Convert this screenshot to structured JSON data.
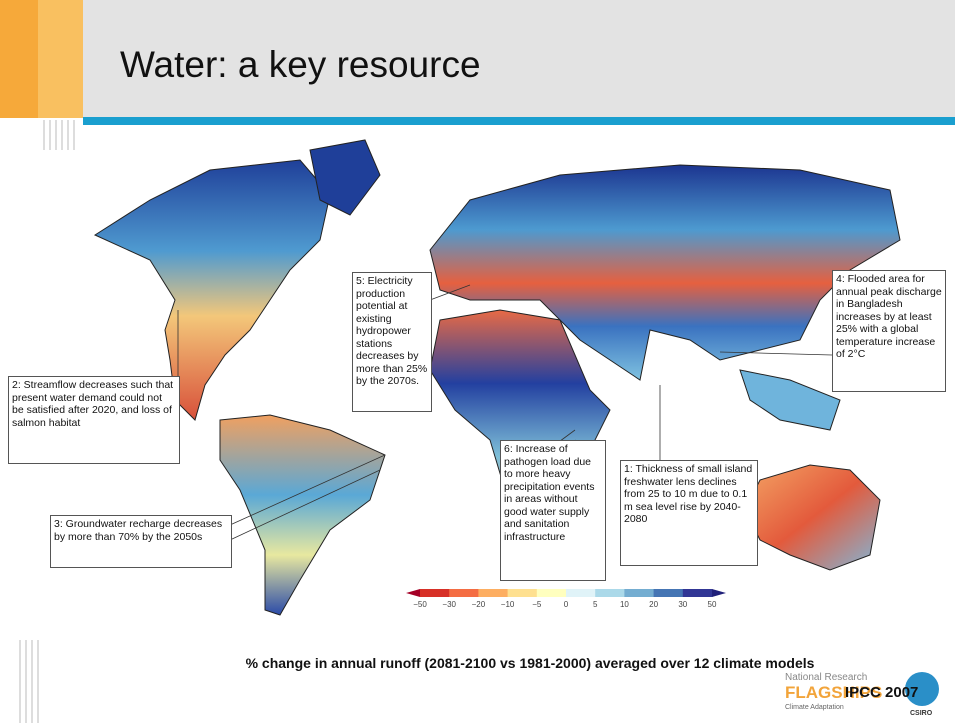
{
  "header": {
    "title": "Water: a key resource"
  },
  "annotations": [
    "1: Thickness of small island freshwater lens declines from 25 to 10 m due to 0.1 m sea level rise by 2040-2080",
    "2: Streamflow decreases such that present water demand could not be satisfied after 2020, and loss of salmon habitat",
    "3: Groundwater recharge decreases by more than 70% by the 2050s",
    "4: Flooded area for annual peak discharge in Bangladesh increases by at least 25% with a global temperature increase of 2°C",
    "5: Electricity production potential at existing hydropower stations decreases by more than 25% by the 2070s.",
    "6: Increase of pathogen load due to more heavy precipitation events in areas without good water supply and sanitation infrastructure"
  ],
  "colorbar": {
    "labels": [
      "−50",
      "−30",
      "−20",
      "−10",
      "−5",
      "0",
      "5",
      "10",
      "20",
      "30",
      "50"
    ]
  },
  "caption": "% change in annual runoff (2081-2100 vs 1981-2000) averaged over 12 climate models",
  "logo": {
    "line1": "National Research",
    "line2": "FLAGSHIPS",
    "line3": "Climate Adaptation",
    "org": "CSIRO"
  },
  "source": "IPCC 2007"
}
